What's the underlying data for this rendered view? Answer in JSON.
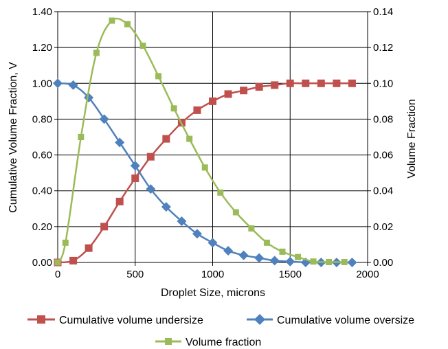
{
  "chart_data": {
    "type": "line",
    "x_axis": {
      "label": "Droplet Size, microns",
      "min": 0,
      "max": 2000,
      "ticks": [
        0,
        500,
        1000,
        1500,
        2000
      ],
      "tick_labels": [
        "0",
        "500",
        "1000",
        "1500",
        "2000"
      ]
    },
    "y_axis_left": {
      "label": "Cumulative Volume Fraction, V",
      "min": 0,
      "max": 1.4,
      "ticks": [
        0,
        0.2,
        0.4,
        0.6,
        0.8,
        1.0,
        1.2,
        1.4
      ],
      "tick_labels": [
        "0.00",
        "0.20",
        "0.40",
        "0.60",
        "0.80",
        "1.00",
        "1.20",
        "1.40"
      ]
    },
    "y_axis_right": {
      "label": "Volume Fraction",
      "min": 0,
      "max": 0.14,
      "ticks": [
        0,
        0.02,
        0.04,
        0.06,
        0.08,
        0.1,
        0.12,
        0.14
      ],
      "tick_labels": [
        "0.00",
        "0.02",
        "0.04",
        "0.06",
        "0.08",
        "0.10",
        "0.12",
        "0.14"
      ]
    },
    "grid": true,
    "legend_position": "bottom",
    "series": [
      {
        "name": "Cumulative volume undersize",
        "axis": "left",
        "marker": "square",
        "color": "#c0504d",
        "x": [
          0,
          100,
          200,
          300,
          400,
          500,
          600,
          700,
          800,
          900,
          1000,
          1100,
          1200,
          1300,
          1400,
          1500,
          1600,
          1700,
          1800,
          1900
        ],
        "y": [
          0.0,
          0.01,
          0.08,
          0.2,
          0.34,
          0.47,
          0.59,
          0.69,
          0.78,
          0.85,
          0.9,
          0.94,
          0.96,
          0.98,
          0.99,
          1.0,
          1.0,
          1.0,
          1.0,
          1.0
        ]
      },
      {
        "name": "Cumulative volume oversize",
        "axis": "left",
        "marker": "diamond",
        "color": "#4f81bd",
        "x": [
          0,
          100,
          200,
          300,
          400,
          500,
          600,
          700,
          800,
          900,
          1000,
          1100,
          1200,
          1300,
          1400,
          1500,
          1600,
          1700,
          1800,
          1900
        ],
        "y": [
          1.0,
          0.99,
          0.92,
          0.8,
          0.67,
          0.54,
          0.41,
          0.31,
          0.23,
          0.16,
          0.11,
          0.065,
          0.04,
          0.025,
          0.01,
          0.005,
          0.0,
          0.0,
          0.0,
          0.0
        ]
      },
      {
        "name": "Volume fraction",
        "axis": "right",
        "marker": "square",
        "color": "#9bbb59",
        "x": [
          0,
          50,
          150,
          250,
          350,
          450,
          550,
          650,
          750,
          850,
          950,
          1050,
          1150,
          1250,
          1350,
          1450,
          1550,
          1650,
          1750,
          1850
        ],
        "y": [
          0.0,
          0.011,
          0.07,
          0.117,
          0.135,
          0.133,
          0.121,
          0.104,
          0.086,
          0.069,
          0.053,
          0.039,
          0.028,
          0.019,
          0.011,
          0.006,
          0.003,
          0.0005,
          0.0002,
          0.0002
        ]
      }
    ]
  }
}
